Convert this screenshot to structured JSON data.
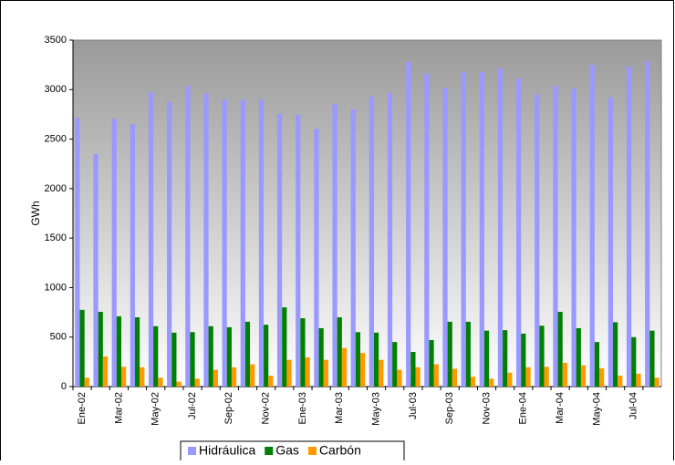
{
  "chart_data": {
    "type": "bar",
    "y_label": "GWh",
    "categories": [
      "Ene-02",
      null,
      "Mar-02",
      null,
      "May-02",
      null,
      "Jul-02",
      null,
      "Sep-02",
      null,
      "Nov-02",
      null,
      "Ene-03",
      null,
      "Mar-03",
      null,
      "May-03",
      null,
      "Jul-03",
      null,
      "Sep-03",
      null,
      "Nov-03",
      null,
      "Ene-04",
      null,
      "Mar-04",
      null,
      "May-04",
      null,
      "Jul-04",
      null
    ],
    "series": [
      {
        "name": "Hidráulica",
        "color": "#9999ff",
        "values": [
          2715,
          2350,
          2705,
          2650,
          2975,
          2875,
          3040,
          2965,
          2900,
          2900,
          2900,
          2755,
          2745,
          2605,
          2855,
          2800,
          2930,
          2965,
          3280,
          3160,
          3020,
          3180,
          3180,
          3215,
          3115,
          2950,
          3040,
          3010,
          3250,
          2920,
          3235,
          3290
        ]
      },
      {
        "name": "Gas",
        "color": "#008000",
        "values": [
          775,
          755,
          710,
          700,
          610,
          545,
          550,
          610,
          600,
          655,
          625,
          800,
          690,
          590,
          700,
          550,
          545,
          450,
          350,
          470,
          655,
          655,
          565,
          570,
          535,
          615,
          755,
          590,
          450,
          650,
          500,
          565
        ]
      },
      {
        "name": "Carbón",
        "color": "#ff9900",
        "values": [
          90,
          305,
          200,
          195,
          90,
          50,
          80,
          170,
          195,
          225,
          110,
          270,
          295,
          270,
          390,
          340,
          270,
          170,
          195,
          225,
          180,
          100,
          80,
          140,
          195,
          200,
          240,
          215,
          185,
          110,
          130,
          90
        ]
      }
    ],
    "ylim": [
      0,
      3500
    ],
    "yticks": [
      0,
      500,
      1000,
      1500,
      2000,
      2500,
      3000,
      3500
    ],
    "legend": "bottom"
  }
}
